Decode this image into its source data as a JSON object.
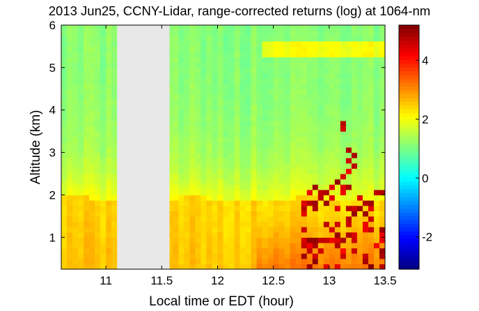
{
  "chart_data": {
    "type": "heatmap",
    "title": "2013 Jun25, CCNY-Lidar, range-corrected returns (log) at 1064-nm",
    "xlabel": "Local time or EDT (hour)",
    "ylabel": "Altitude (km)",
    "xlim": [
      10.6,
      13.5
    ],
    "ylim": [
      0.25,
      6.0
    ],
    "x_ticks": [
      11,
      11.5,
      12,
      12.5,
      13,
      13.5
    ],
    "x_tick_labels": [
      "11",
      "11.5",
      "12",
      "12.5",
      "13",
      "13.5"
    ],
    "y_ticks": [
      1,
      2,
      3,
      4,
      5,
      6
    ],
    "y_tick_labels": [
      "1",
      "2",
      "3",
      "4",
      "5",
      "6"
    ],
    "data_gap": [
      11.1,
      11.57
    ],
    "colorbar": {
      "colormap": "jet",
      "clim": [
        -3.1,
        5.2
      ],
      "ticks": [
        -2,
        0,
        2,
        4
      ],
      "tick_labels": [
        "-2",
        "0",
        "2",
        "4"
      ]
    },
    "field_description": {
      "boundary_layer_top_km": 1.9,
      "boundary_layer_value": 2.6,
      "free_troposphere_value": 1.1,
      "elevated_layer_km": [
        5.3,
        5.6
      ],
      "cloud_region_x": [
        12.75,
        13.5
      ],
      "cloud_value": 5.0
    }
  }
}
